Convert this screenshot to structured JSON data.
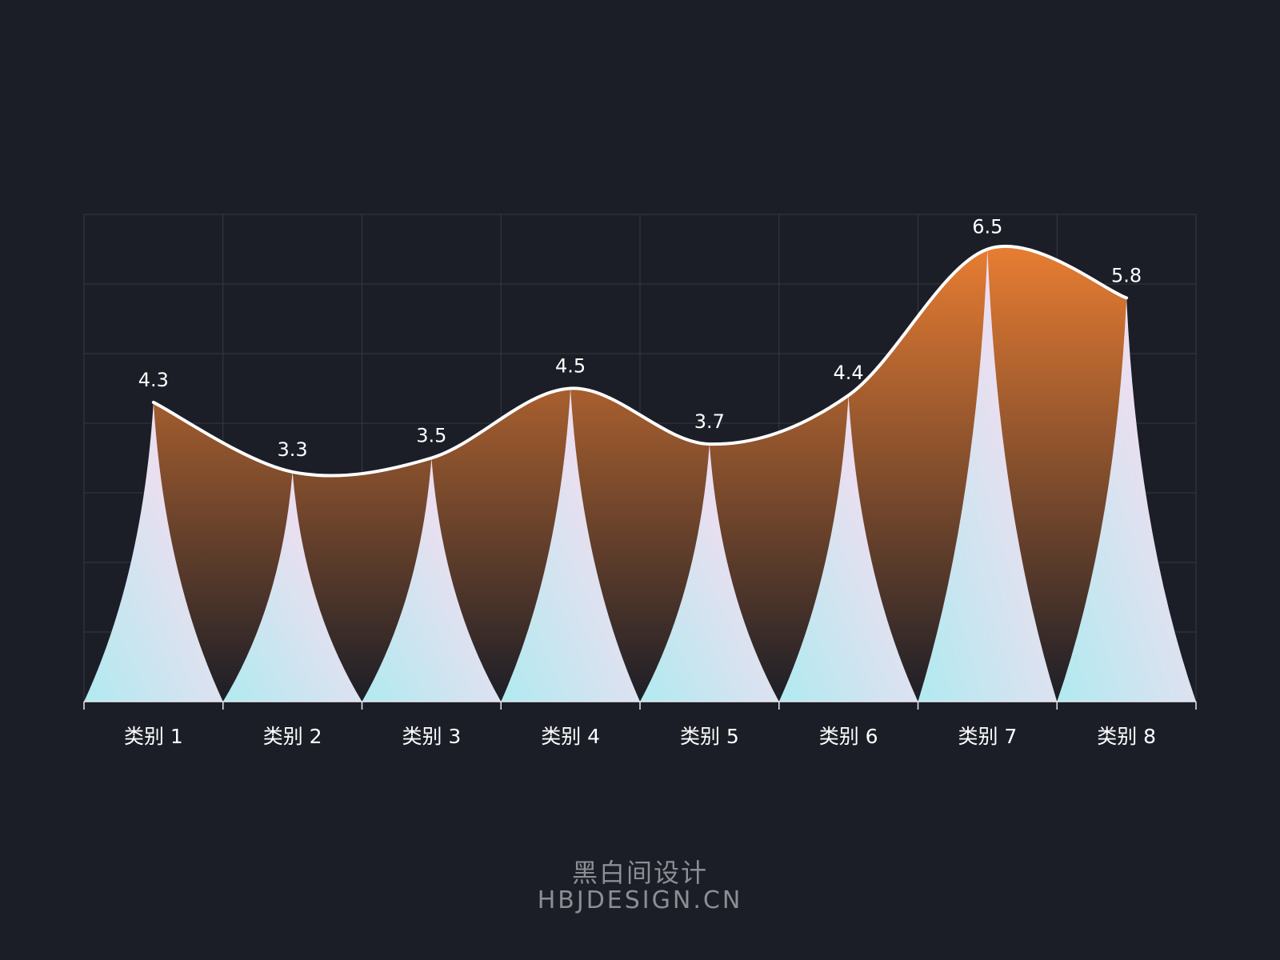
{
  "chart_data": {
    "type": "area",
    "categories": [
      "类别 1",
      "类别 2",
      "类别 3",
      "类别 4",
      "类别 5",
      "类别 6",
      "类别 7",
      "类别 8"
    ],
    "values": [
      4.3,
      3.3,
      3.5,
      4.5,
      3.7,
      4.4,
      6.5,
      5.8
    ],
    "title": "",
    "xlabel": "",
    "ylabel": "",
    "ylim": [
      0,
      7
    ],
    "grid": true,
    "legend": "none",
    "colors": {
      "background": "#1c1e27",
      "grid": "#353846",
      "axis": "#e8e8ee",
      "line": "#ffffff",
      "area_top": "#e87d32",
      "area_bottom": "#1c1e27",
      "peak_top": "#eadff0",
      "peak_bottom": "#b0eaf0",
      "text": "#ffffff"
    }
  },
  "watermark": {
    "cn": "黑白间设计",
    "en": "HBJDESIGN.CN"
  }
}
